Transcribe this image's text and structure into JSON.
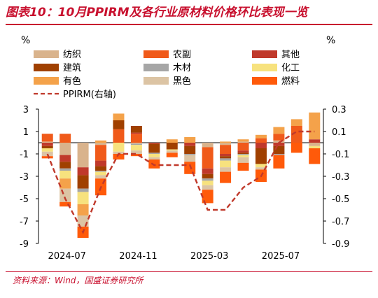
{
  "title": "图表10：10月PPIRM及各行业原材料价格环比表现一览",
  "source": "资料来源：Wind，国盛证券研究所",
  "chart_data": {
    "type": "bar",
    "stacked": true,
    "categories": [
      "2024-07",
      "2024-08",
      "2024-09",
      "2024-10",
      "2024-11",
      "2024-12",
      "2025-01",
      "2025-02",
      "2025-03",
      "2025-04",
      "2025-05",
      "2025-06",
      "2025-07",
      "2025-08",
      "2025-09",
      "2025-10"
    ],
    "x_tick_labels": [
      "2024-07",
      "2024-11",
      "2025-03",
      "2025-07"
    ],
    "y_left": {
      "label": "%",
      "range": [
        -9,
        3
      ],
      "ticks": [
        3,
        1,
        -1,
        -3,
        -5,
        -7,
        -9
      ]
    },
    "y_right": {
      "label": "%",
      "range": [
        -0.9,
        0.3
      ],
      "ticks": [
        0.3,
        0.1,
        -0.1,
        -0.3,
        -0.5,
        -0.7,
        -0.9
      ]
    },
    "legend_position": "top",
    "series": [
      {
        "name": "纺织",
        "color": "#d9b38c",
        "values": [
          0.1,
          -1.1,
          -2.2,
          -0.2,
          0.0,
          -0.1,
          0.0,
          0.0,
          0.0,
          -0.4,
          -0.2,
          0.1,
          0.0,
          0.2,
          0.0,
          -0.3
        ]
      },
      {
        "name": "农副",
        "color": "#f05a1a",
        "values": [
          0.7,
          0.8,
          0.0,
          -1.4,
          1.2,
          0.8,
          0.0,
          0.0,
          0.0,
          -1.9,
          -0.8,
          -0.7,
          0.4,
          0.6,
          1.5,
          0.0
        ]
      },
      {
        "name": "其他",
        "color": "#c0392b",
        "values": [
          -0.3,
          -0.6,
          -0.7,
          -0.5,
          0.0,
          0.1,
          -0.1,
          0.0,
          -0.3,
          -0.5,
          -0.2,
          -0.2,
          -0.5,
          -0.3,
          0.0,
          0.3
        ]
      },
      {
        "name": "建筑",
        "color": "#a04000",
        "values": [
          -0.2,
          -0.6,
          -1.2,
          -0.4,
          0.8,
          0.6,
          -0.8,
          -0.6,
          -0.7,
          -0.4,
          -0.2,
          -0.1,
          -1.4,
          -0.7,
          0.0,
          0.0
        ]
      },
      {
        "name": "木材",
        "color": "#a6a6a6",
        "values": [
          0.0,
          -0.2,
          -0.3,
          -0.1,
          0.0,
          -0.1,
          -0.1,
          0.0,
          -0.1,
          -0.2,
          -0.2,
          -0.1,
          0.0,
          -0.1,
          0.0,
          0.0
        ]
      },
      {
        "name": "化工",
        "color": "#f7e27e",
        "values": [
          -0.3,
          -0.7,
          -1.1,
          -0.3,
          -0.8,
          -0.5,
          -0.3,
          -0.1,
          0.0,
          -0.4,
          -0.6,
          -0.2,
          -0.3,
          0.0,
          0.0,
          -0.2
        ]
      },
      {
        "name": "有色",
        "color": "#f4a24a",
        "values": [
          0.0,
          -0.9,
          -1.0,
          0.2,
          0.6,
          0.0,
          0.0,
          0.3,
          0.5,
          0.0,
          0.1,
          0.2,
          0.3,
          0.6,
          0.6,
          2.4
        ]
      },
      {
        "name": "黑色",
        "color": "#dcc4a4",
        "values": [
          -0.4,
          -1.2,
          -1.0,
          -0.3,
          -0.2,
          -0.3,
          -0.2,
          -0.2,
          -0.6,
          -0.4,
          -0.4,
          -0.5,
          -0.2,
          0.0,
          0.0,
          0.0
        ]
      },
      {
        "name": "燃料",
        "color": "#ff5a0a",
        "values": [
          -0.2,
          -0.4,
          -1.0,
          -1.5,
          -0.5,
          -0.2,
          -0.8,
          -0.4,
          -1.1,
          -1.2,
          -1.0,
          -0.7,
          -1.1,
          -1.2,
          -0.9,
          -1.4
        ]
      }
    ],
    "line": {
      "name": "PPIRM(右轴)",
      "color": "#c0392b",
      "axis": "right",
      "values": [
        -0.1,
        -0.5,
        -0.8,
        -0.4,
        -0.1,
        -0.1,
        -0.2,
        -0.2,
        -0.2,
        -0.6,
        -0.6,
        -0.4,
        -0.3,
        0.0,
        0.1,
        0.1
      ]
    }
  }
}
